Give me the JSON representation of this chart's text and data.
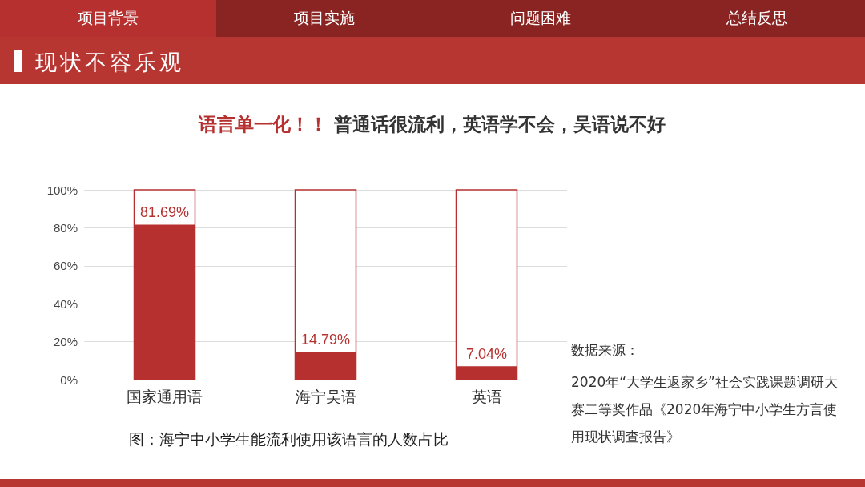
{
  "chart_data": {
    "type": "bar",
    "title": "现状不容乐观",
    "annotations": [
      "项目背景",
      "项目实施",
      "问题困难",
      "总结反思",
      "语言单一化！！",
      "普通话很流利，英语学不会，吴语说不好",
      "图：海宁中小学生能流利使用该语言的人数占比",
      "数据来源：",
      "2020年“大学生返家乡”社会实践课题调研大赛二等奖作品《2020年海宁中小学生方言使用现状调查报告》"
    ],
    "categories": [
      "国家通用语",
      "海宁吴语",
      "英语"
    ],
    "values": [
      81.69,
      14.79,
      7.04
    ],
    "value_labels": [
      "81.69%",
      "14.79%",
      "7.04%"
    ],
    "color": "#b5302f",
    "ylim": [
      0,
      100
    ],
    "yticks": [
      {
        "value": 0,
        "label": "0%"
      },
      {
        "value": 20,
        "label": "20%"
      },
      {
        "value": 40,
        "label": "40%"
      },
      {
        "value": 60,
        "label": "60%"
      },
      {
        "value": 80,
        "label": "80%"
      },
      {
        "value": 100,
        "label": "100%"
      }
    ],
    "grid": "y"
  }
}
